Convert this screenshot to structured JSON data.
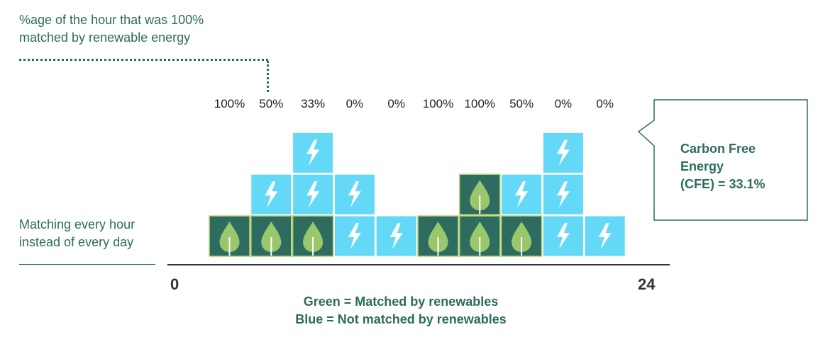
{
  "top_note": {
    "line1": "%age of the hour that was 100%",
    "line2": "matched by renewable energy"
  },
  "left_note": {
    "line1": "Matching every hour",
    "line2": "instead of every day"
  },
  "axis": {
    "start_label": "0",
    "end_label": "24"
  },
  "legend": {
    "green": "Green = Matched by renewables",
    "blue": "Blue = Not matched by renewables"
  },
  "callout": {
    "line1": "Carbon Free",
    "line2": "Energy",
    "line3": "(CFE) = 33.1%"
  },
  "colors": {
    "matched": "#2e6b61",
    "not_matched": "#63d8f7",
    "leaf": "#9ac76a",
    "text_accent": "#2c6b5f"
  },
  "chart_data": {
    "type": "bar",
    "stacked": true,
    "x_range": [
      0,
      24
    ],
    "column_labels": [
      "100%",
      "50%",
      "33%",
      "0%",
      "0%",
      "100%",
      "100%",
      "50%",
      "0%",
      "0%"
    ],
    "columns": [
      {
        "blocks": [
          "matched"
        ]
      },
      {
        "blocks": [
          "matched",
          "not_matched"
        ]
      },
      {
        "blocks": [
          "matched",
          "not_matched",
          "not_matched"
        ]
      },
      {
        "blocks": [
          "not_matched",
          "not_matched"
        ]
      },
      {
        "blocks": [
          "not_matched"
        ]
      },
      {
        "blocks": [
          "matched"
        ]
      },
      {
        "blocks": [
          "matched",
          "matched"
        ]
      },
      {
        "blocks": [
          "matched",
          "not_matched"
        ]
      },
      {
        "blocks": [
          "not_matched",
          "not_matched",
          "not_matched"
        ]
      },
      {
        "blocks": [
          "not_matched"
        ]
      }
    ]
  }
}
